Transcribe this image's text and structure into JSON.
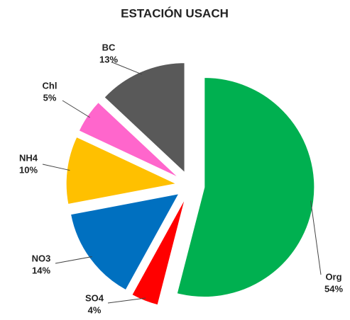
{
  "chart_data": {
    "type": "pie",
    "title": "ESTACIÓN USACH",
    "categories": [
      "Org",
      "SO4",
      "NO3",
      "NH4",
      "Chl",
      "BC"
    ],
    "values": [
      54,
      4,
      14,
      10,
      5,
      13
    ],
    "value_labels": [
      "54%",
      "4%",
      "14%",
      "10%",
      "5%",
      "13%"
    ],
    "colors": [
      "#00b050",
      "#ff0000",
      "#0070c0",
      "#ffc000",
      "#ff66cc",
      "#595959"
    ]
  }
}
